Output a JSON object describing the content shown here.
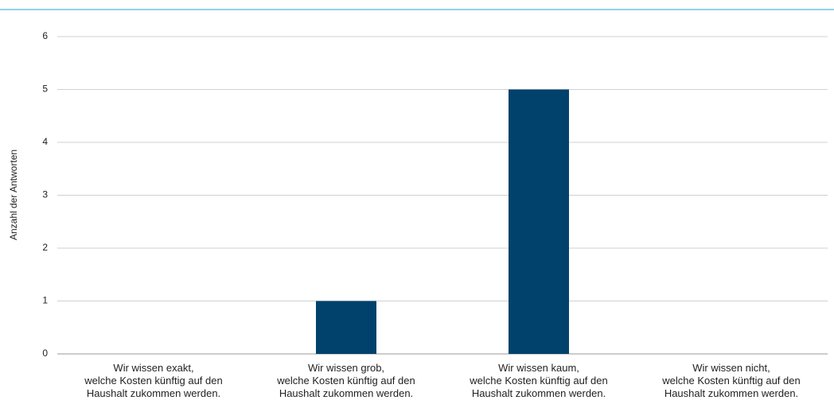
{
  "chart_data": {
    "type": "bar",
    "y_label": "Anzahl der Antworten",
    "categories": [
      "Wir wissen exakt,\nwelche Kosten künftig auf den\nHaushalt zukommen werden.",
      "Wir wissen grob,\nwelche Kosten künftig auf den\nHaushalt zukommen werden.",
      "Wir wissen kaum,\nwelche Kosten künftig auf den\nHaushalt zukommen werden.",
      "Wir wissen nicht,\nwelche Kosten künftig auf den\nHaushalt zukommen werden."
    ],
    "values": [
      0,
      1,
      5,
      0
    ],
    "color": "#00426b",
    "ylim": [
      0,
      6
    ],
    "yticks": [
      0,
      1,
      2,
      3,
      4,
      5,
      6
    ],
    "grid": true
  }
}
